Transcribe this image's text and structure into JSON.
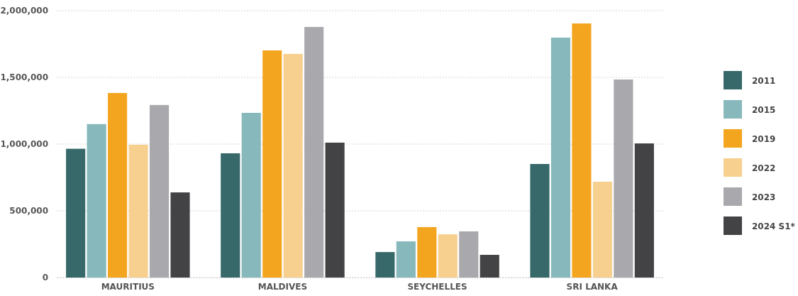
{
  "chart_data": {
    "type": "bar",
    "categories": [
      "MAURITIUS",
      "MALDIVES",
      "SEYCHELLES",
      "SRI LANKA"
    ],
    "series": [
      {
        "name": "2011",
        "color": "#37686a",
        "values": [
          965000,
          931000,
          191000,
          851000
        ]
      },
      {
        "name": "2015",
        "color": "#86b8bc",
        "values": [
          1150000,
          1234000,
          271000,
          1798000
        ]
      },
      {
        "name": "2019",
        "color": "#f4a51f",
        "values": [
          1383000,
          1702000,
          378000,
          1904000
        ]
      },
      {
        "name": "2022",
        "color": "#f7d08f",
        "values": [
          995000,
          1676000,
          324000,
          718000
        ]
      },
      {
        "name": "2023",
        "color": "#a9a9ad",
        "values": [
          1293000,
          1878000,
          346000,
          1484000
        ]
      },
      {
        "name": "2024 S1*",
        "color": "#434345",
        "values": [
          638000,
          1011000,
          170000,
          1005000
        ]
      }
    ],
    "ylim": [
      0,
      2000000
    ],
    "yticks": [
      {
        "value": 0,
        "label": "0"
      },
      {
        "value": 500000,
        "label": "500,000"
      },
      {
        "value": 1000000,
        "label": "1,000,000"
      },
      {
        "value": 1500000,
        "label": "1,500,000"
      },
      {
        "value": 2000000,
        "label": "2,000,000"
      }
    ],
    "grid": "y",
    "legend": "right"
  }
}
